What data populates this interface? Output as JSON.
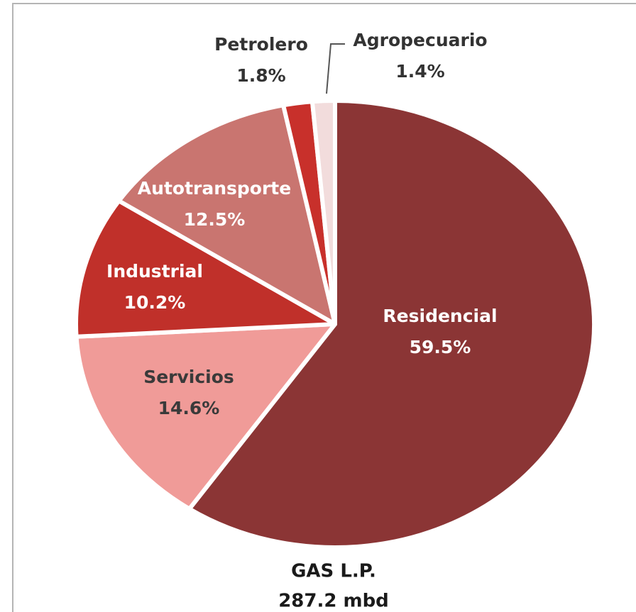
{
  "chart_data": {
    "type": "pie",
    "title": "GAS L.P.",
    "subtitle": "287.2 mbd",
    "categories": [
      "Residencial",
      "Servicios",
      "Industrial",
      "Autotransporte",
      "Petrolero",
      "Agropecuario"
    ],
    "values": [
      59.5,
      14.6,
      10.2,
      12.5,
      1.8,
      1.4
    ],
    "value_labels": [
      "59.5%",
      "14.6%",
      "10.2%",
      "12.5%",
      "1.8%",
      "1.4%"
    ],
    "colors": [
      "#8b3535",
      "#f09b98",
      "#c0302a",
      "#c97570",
      "#c8302b",
      "#f2dcdc"
    ]
  }
}
